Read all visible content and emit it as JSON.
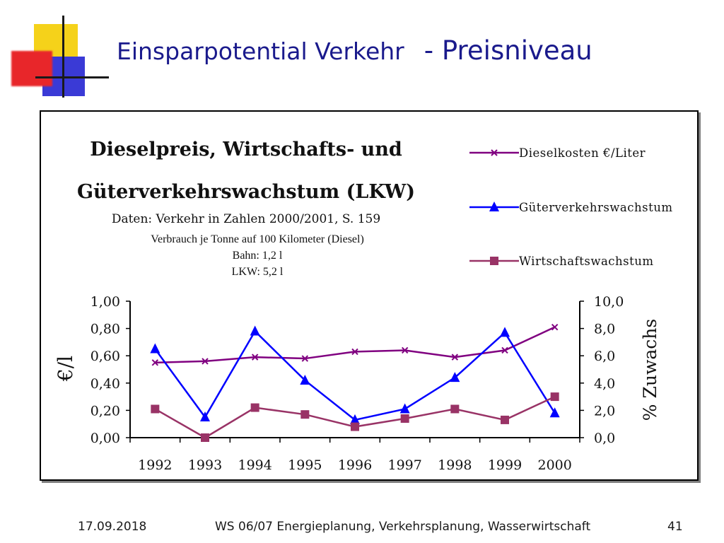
{
  "slide": {
    "title_part1": "Einsparpotential Verkehr",
    "title_part2": "- Preisniveau",
    "footer_date": "17.09.2018",
    "footer_course": "WS 06/07 Energieplanung, Verkehrsplanung, Wasserwirtschaft",
    "page_number": "41"
  },
  "colors": {
    "title": "#1a1a8c",
    "diesel": "#800080",
    "gueter": "#0000ff",
    "wirtschaft": "#993366",
    "deco_yellow": "#f5d21a",
    "deco_red": "#e8262a",
    "deco_blue": "#3a3ad6"
  },
  "chart_data": {
    "type": "line",
    "title_line1": "Dieselpreis, Wirtschafts- und",
    "title_line2": "Güterverkehrswachstum (LKW)",
    "subtitle": "Daten: Verkehr in Zahlen 2000/2001, S. 159",
    "annotation_lines": [
      "Verbrauch je Tonne auf 100 Kilometer (Diesel)",
      "Bahn: 1,2 l",
      "LKW: 5,2 l"
    ],
    "ylabel_left": "€/l",
    "ylabel_right": "% Zuwachs",
    "categories": [
      "1992",
      "1993",
      "1994",
      "1995",
      "1996",
      "1997",
      "1998",
      "1999",
      "2000"
    ],
    "y_left": {
      "range": [
        0,
        1
      ],
      "ticks": [
        "0,00",
        "0,20",
        "0,40",
        "0,60",
        "0,80",
        "1,00"
      ]
    },
    "y_right": {
      "range": [
        0,
        10
      ],
      "ticks": [
        "0,0",
        "2,0",
        "4,0",
        "6,0",
        "8,0",
        "10,0"
      ]
    },
    "grid": false,
    "legend_position": "top-right",
    "series": [
      {
        "name": "Dieselkosten €/Liter",
        "axis": "left",
        "marker": "x",
        "color_key": "diesel",
        "values": [
          0.55,
          0.56,
          0.59,
          0.58,
          0.63,
          0.64,
          0.59,
          0.64,
          0.81
        ]
      },
      {
        "name": "Güterverkehrswachstum",
        "axis": "right",
        "marker": "triangle",
        "color_key": "gueter",
        "values": [
          6.5,
          1.5,
          7.8,
          4.2,
          1.3,
          2.1,
          4.4,
          7.7,
          1.8
        ]
      },
      {
        "name": "Wirtschaftswachstum",
        "axis": "right",
        "marker": "square",
        "color_key": "wirtschaft",
        "values": [
          2.1,
          0.0,
          2.2,
          1.7,
          0.8,
          1.4,
          2.1,
          1.3,
          3.0
        ]
      }
    ]
  }
}
